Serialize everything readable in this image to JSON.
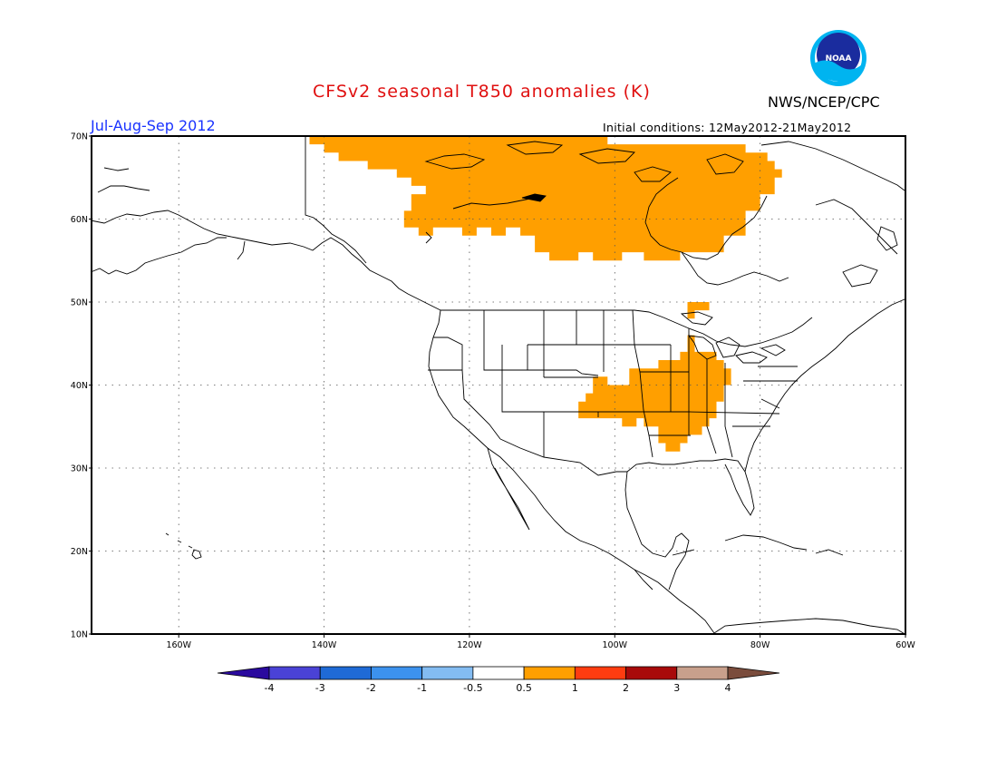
{
  "title": "CFSv2 seasonal T850 anomalies (K)",
  "agency": "NWS/NCEP/CPC",
  "logo_text": "NOAA",
  "period": "Jul-Aug-Sep 2012",
  "initial_conditions": "Initial conditions: 12May2012-21May2012",
  "map": {
    "lon_range": [
      -172,
      -60
    ],
    "lat_range": [
      10,
      70
    ],
    "lon_ticks": [
      {
        "value": -160,
        "label": "160W"
      },
      {
        "value": -140,
        "label": "140W"
      },
      {
        "value": -120,
        "label": "120W"
      },
      {
        "value": -100,
        "label": "100W"
      },
      {
        "value": -80,
        "label": "80W"
      },
      {
        "value": -60,
        "label": "60W"
      }
    ],
    "lat_ticks": [
      {
        "value": 70,
        "label": "70N"
      },
      {
        "value": 60,
        "label": "60N"
      },
      {
        "value": 50,
        "label": "50N"
      },
      {
        "value": 40,
        "label": "40N"
      },
      {
        "value": 30,
        "label": "30N"
      },
      {
        "value": 20,
        "label": "20N"
      },
      {
        "value": 10,
        "label": "10N"
      }
    ],
    "gridlines": "dotted",
    "anomaly_color": "#ff9f00",
    "regions": [
      {
        "name": "northern-canada-anomaly",
        "value_range": "0.5 to 1",
        "lonlat": [
          [
            -142,
            70
          ],
          [
            -142,
            69
          ],
          [
            -140,
            69
          ],
          [
            -140,
            68
          ],
          [
            -138,
            68
          ],
          [
            -138,
            67
          ],
          [
            -134,
            67
          ],
          [
            -134,
            66
          ],
          [
            -130,
            66
          ],
          [
            -130,
            65
          ],
          [
            -128,
            65
          ],
          [
            -128,
            64
          ],
          [
            -126,
            64
          ],
          [
            -126,
            63
          ],
          [
            -128,
            63
          ],
          [
            -128,
            61
          ],
          [
            -129,
            61
          ],
          [
            -129,
            59
          ],
          [
            -127,
            59
          ],
          [
            -127,
            58
          ],
          [
            -125,
            58
          ],
          [
            -125,
            59
          ],
          [
            -121,
            59
          ],
          [
            -121,
            58
          ],
          [
            -119,
            58
          ],
          [
            -119,
            59
          ],
          [
            -117,
            59
          ],
          [
            -117,
            58
          ],
          [
            -115,
            58
          ],
          [
            -115,
            59
          ],
          [
            -113,
            59
          ],
          [
            -113,
            58
          ],
          [
            -111,
            58
          ],
          [
            -111,
            56
          ],
          [
            -109,
            56
          ],
          [
            -109,
            55
          ],
          [
            -105,
            55
          ],
          [
            -105,
            56
          ],
          [
            -103,
            56
          ],
          [
            -103,
            55
          ],
          [
            -99,
            55
          ],
          [
            -99,
            56
          ],
          [
            -96,
            56
          ],
          [
            -96,
            55
          ],
          [
            -91,
            55
          ],
          [
            -91,
            56
          ],
          [
            -85,
            56
          ],
          [
            -85,
            58
          ],
          [
            -82,
            58
          ],
          [
            -82,
            61
          ],
          [
            -80,
            61
          ],
          [
            -80,
            63
          ],
          [
            -78,
            63
          ],
          [
            -78,
            65
          ],
          [
            -77,
            65
          ],
          [
            -77,
            66
          ],
          [
            -78,
            66
          ],
          [
            -78,
            67
          ],
          [
            -79,
            67
          ],
          [
            -79,
            68
          ],
          [
            -82,
            68
          ],
          [
            -82,
            69
          ],
          [
            -101,
            69
          ],
          [
            -101,
            70
          ]
        ]
      },
      {
        "name": "great-lakes-small-anomaly",
        "value_range": "0.5 to 1",
        "lonlat": [
          [
            -90,
            50
          ],
          [
            -87,
            50
          ],
          [
            -87,
            49
          ],
          [
            -89,
            49
          ],
          [
            -89,
            48
          ],
          [
            -90,
            48
          ]
        ]
      },
      {
        "name": "central-us-anomaly",
        "value_range": "0.5 to 1",
        "lonlat": [
          [
            -101,
            41
          ],
          [
            -101,
            40
          ],
          [
            -98,
            40
          ],
          [
            -98,
            42
          ],
          [
            -94,
            42
          ],
          [
            -94,
            43
          ],
          [
            -91,
            43
          ],
          [
            -91,
            44
          ],
          [
            -90,
            44
          ],
          [
            -90,
            46
          ],
          [
            -89,
            46
          ],
          [
            -89,
            44
          ],
          [
            -86,
            44
          ],
          [
            -86,
            43
          ],
          [
            -85,
            43
          ],
          [
            -85,
            42
          ],
          [
            -84,
            42
          ],
          [
            -84,
            40
          ],
          [
            -85,
            40
          ],
          [
            -85,
            38
          ],
          [
            -86,
            38
          ],
          [
            -86,
            36
          ],
          [
            -87,
            36
          ],
          [
            -87,
            35
          ],
          [
            -88,
            35
          ],
          [
            -88,
            34
          ],
          [
            -90,
            34
          ],
          [
            -90,
            33
          ],
          [
            -91,
            33
          ],
          [
            -91,
            32
          ],
          [
            -93,
            32
          ],
          [
            -93,
            33
          ],
          [
            -94,
            33
          ],
          [
            -94,
            35
          ],
          [
            -96,
            35
          ],
          [
            -96,
            36
          ],
          [
            -97,
            36
          ],
          [
            -97,
            35
          ],
          [
            -99,
            35
          ],
          [
            -99,
            36
          ],
          [
            -105,
            36
          ],
          [
            -105,
            38
          ],
          [
            -104,
            38
          ],
          [
            -104,
            39
          ],
          [
            -103,
            39
          ],
          [
            -103,
            41
          ]
        ]
      }
    ]
  },
  "colorbar": {
    "labels": [
      "-4",
      "-3",
      "-2",
      "-1",
      "-0.5",
      "0.5",
      "1",
      "2",
      "3",
      "4"
    ],
    "colors": [
      "#2a0a9e",
      "#4a42d6",
      "#1f6ad6",
      "#3c92ee",
      "#83bcf2",
      "#ffffff",
      "#ff9f00",
      "#ff3c10",
      "#a80a0a",
      "#c8a08c",
      "#7a4c3c"
    ]
  }
}
